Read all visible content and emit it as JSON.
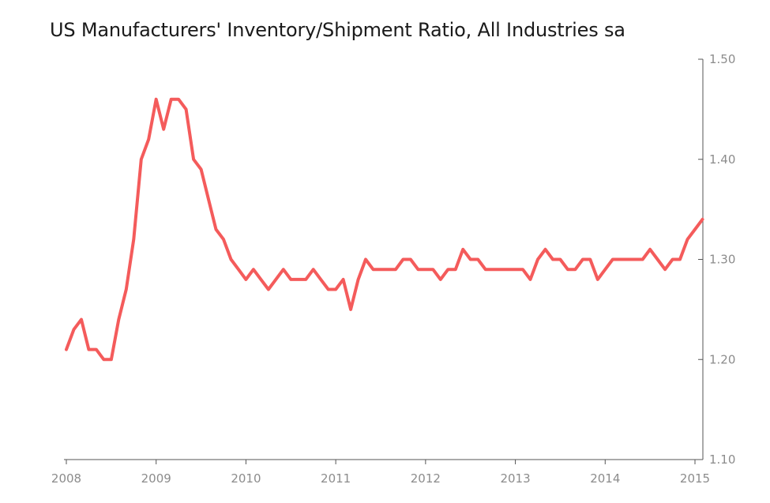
{
  "chart_data": {
    "type": "line",
    "title": "US Manufacturers' Inventory/Shipment Ratio, All Industries sa",
    "xlabel": "",
    "ylabel": "",
    "x_start": "2008-01",
    "x_ticks": [
      "2008",
      "2009",
      "2010",
      "2011",
      "2012",
      "2013",
      "2014",
      "2015"
    ],
    "x_range": [
      2008,
      2015
    ],
    "y_ticks": [
      "1.10",
      "1.20",
      "1.30",
      "1.40",
      "1.50"
    ],
    "ylim": [
      1.1,
      1.5
    ],
    "y_axis_side": "right",
    "grid": false,
    "series": [
      {
        "name": "Inventory/Shipment Ratio",
        "color": "#f45b5b",
        "values": [
          1.21,
          1.23,
          1.24,
          1.21,
          1.21,
          1.2,
          1.2,
          1.24,
          1.27,
          1.32,
          1.4,
          1.42,
          1.46,
          1.43,
          1.46,
          1.46,
          1.45,
          1.4,
          1.39,
          1.36,
          1.33,
          1.32,
          1.3,
          1.29,
          1.28,
          1.29,
          1.28,
          1.27,
          1.28,
          1.29,
          1.28,
          1.28,
          1.28,
          1.29,
          1.28,
          1.27,
          1.27,
          1.28,
          1.25,
          1.28,
          1.3,
          1.29,
          1.29,
          1.29,
          1.29,
          1.3,
          1.3,
          1.29,
          1.29,
          1.29,
          1.28,
          1.29,
          1.29,
          1.31,
          1.3,
          1.3,
          1.29,
          1.29,
          1.29,
          1.29,
          1.29,
          1.29,
          1.28,
          1.3,
          1.31,
          1.3,
          1.3,
          1.29,
          1.29,
          1.3,
          1.3,
          1.28,
          1.29,
          1.3,
          1.3,
          1.3,
          1.3,
          1.3,
          1.31,
          1.3,
          1.29,
          1.3,
          1.3,
          1.32,
          1.33,
          1.34
        ]
      }
    ]
  }
}
